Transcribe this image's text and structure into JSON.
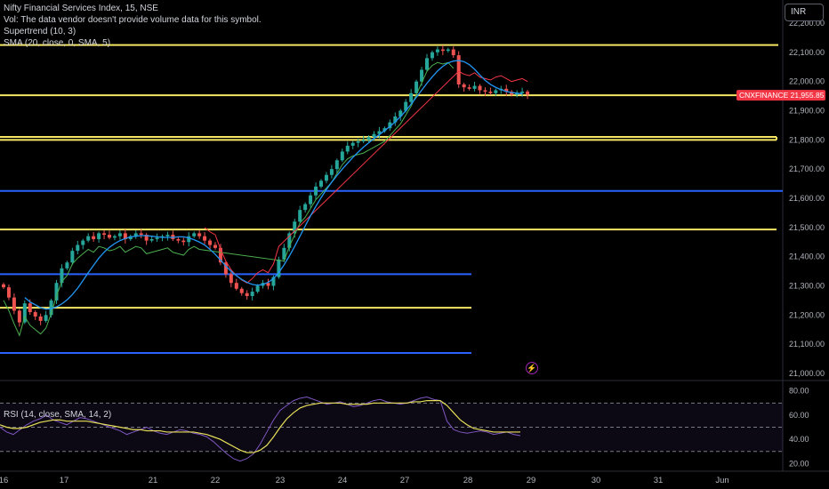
{
  "header": {
    "title": "Nifty Financial Services Index, 15, NSE",
    "volume_note": "Vol: The data vendor doesn't provide volume data for this symbol.",
    "supertrend_label": "Supertrend (10, 3)",
    "sma_label": "SMA (20, close, 0, SMA, 5)",
    "rsi_label": "RSI (14, close, SMA, 14, 2)"
  },
  "currency_button": "INR",
  "colors": {
    "background": "#000000",
    "up_candle": "#26a69a",
    "down_candle": "#ef5350",
    "sma_line": "#2196f3",
    "supertrend_up": "#4caf50",
    "supertrend_down": "#f23645",
    "yellow_level": "#f5e663",
    "blue_level": "#2962ff",
    "rsi_line": "#7e57c2",
    "rsi_ma": "#e8e05a",
    "price_label": "#f23645"
  },
  "chart_data": [
    {
      "type": "candlestick",
      "title": "Nifty Financial Services Index, 15, NSE",
      "y_ticks": [
        "22,200.00",
        "22,100.00",
        "22,000.00",
        "21,900.00",
        "21,800.00",
        "21,700.00",
        "21,600.00",
        "21,500.00",
        "21,400.00",
        "21,300.00",
        "21,200.00",
        "21,100.00",
        "21,000.00"
      ],
      "ylim": [
        21000,
        22200
      ],
      "x_ticks": [
        "16",
        "17",
        "21",
        "22",
        "23",
        "24",
        "27",
        "28",
        "29",
        "30",
        "31",
        "Jun"
      ],
      "last_price": {
        "symbol": "CNXFINANCE",
        "value": "21,955.85"
      },
      "candles_close": [
        21295,
        21260,
        21215,
        21175,
        21240,
        21210,
        21195,
        21180,
        21200,
        21250,
        21310,
        21360,
        21380,
        21420,
        21440,
        21455,
        21470,
        21460,
        21480,
        21475,
        21465,
        21470,
        21480,
        21460,
        21470,
        21480,
        21475,
        21455,
        21460,
        21465,
        21470,
        21475,
        21460,
        21455,
        21450,
        21470,
        21480,
        21470,
        21455,
        21440,
        21430,
        21380,
        21340,
        21310,
        21290,
        21275,
        21265,
        21280,
        21300,
        21310,
        21300,
        21330,
        21390,
        21430,
        21480,
        21520,
        21560,
        21580,
        21610,
        21640,
        21660,
        21680,
        21700,
        21730,
        21760,
        21780,
        21790,
        21795,
        21800,
        21810,
        21820,
        21830,
        21840,
        21860,
        21880,
        21900,
        21930,
        21960,
        22000,
        22040,
        22080,
        22100,
        22110,
        22105,
        22110,
        22090,
        21990,
        21980,
        21975,
        21985,
        21970,
        21965,
        21960,
        21970,
        21975,
        21965,
        21955,
        21960,
        21965,
        21955
      ],
      "sma_20": [
        21260,
        21245,
        21235,
        21225,
        21220,
        21222,
        21228,
        21238,
        21252,
        21270,
        21292,
        21318,
        21345,
        21370,
        21395,
        21415,
        21432,
        21445,
        21455,
        21462,
        21468,
        21470,
        21472,
        21472,
        21470,
        21468,
        21466,
        21466,
        21466,
        21468,
        21468,
        21464,
        21458,
        21450,
        21440,
        21425,
        21408,
        21388,
        21368,
        21350,
        21335,
        21322,
        21312,
        21305,
        21302,
        21305,
        21312,
        21325,
        21345,
        21372,
        21402,
        21435,
        21470,
        21505,
        21540,
        21572,
        21602,
        21630,
        21655,
        21678,
        21700,
        21720,
        21740,
        21758,
        21775,
        21790,
        21805,
        21818,
        21832,
        21846,
        21862,
        21880,
        21900,
        21922,
        21946,
        21970,
        21994,
        22016,
        22036,
        22052,
        22064,
        22070,
        22072,
        22068,
        22058,
        22042,
        22022,
        22004,
        21990,
        21980,
        21972,
        21966,
        21962,
        21960,
        21958
      ],
      "horizontal_levels_yellow": [
        22125,
        21953,
        21810,
        21800,
        21493,
        21225
      ],
      "horizontal_levels_blue": [
        21625,
        21340,
        21070
      ]
    },
    {
      "type": "line",
      "title": "RSI (14, close, SMA, 14, 2)",
      "y_ticks": [
        "80.00",
        "60.00",
        "40.00",
        "20.00"
      ],
      "ylim": [
        18,
        82
      ],
      "bands": [
        70,
        50,
        30
      ],
      "rsi": [
        50,
        46,
        44,
        48,
        52,
        55,
        57,
        60,
        56,
        54,
        52,
        55,
        58,
        57,
        55,
        53,
        51,
        49,
        47,
        44,
        46,
        48,
        50,
        47,
        45,
        44,
        46,
        48,
        47,
        45,
        44,
        42,
        38,
        33,
        28,
        24,
        22,
        24,
        28,
        36,
        46,
        56,
        64,
        68,
        72,
        74,
        75,
        73,
        71,
        69,
        70,
        71,
        69,
        67,
        68,
        70,
        72,
        73,
        71,
        70,
        69,
        70,
        72,
        74,
        75,
        73,
        72,
        55,
        48,
        46,
        45,
        46,
        47,
        46,
        44,
        45,
        46,
        44,
        43
      ],
      "rsi_ma": [
        52,
        50,
        49,
        49,
        50,
        52,
        54,
        55,
        56,
        56,
        55,
        55,
        55,
        55,
        54,
        53,
        52,
        51,
        50,
        49,
        48,
        48,
        47,
        47,
        47,
        46,
        46,
        46,
        46,
        46,
        45,
        44,
        42,
        40,
        37,
        34,
        31,
        29,
        29,
        31,
        35,
        42,
        50,
        57,
        62,
        66,
        68,
        69,
        70,
        70,
        70,
        70,
        69,
        69,
        69,
        69,
        70,
        70,
        70,
        70,
        70,
        70,
        71,
        71,
        72,
        72,
        72,
        68,
        62,
        56,
        52,
        49,
        48,
        47,
        46,
        46,
        46,
        46,
        46
      ]
    }
  ]
}
